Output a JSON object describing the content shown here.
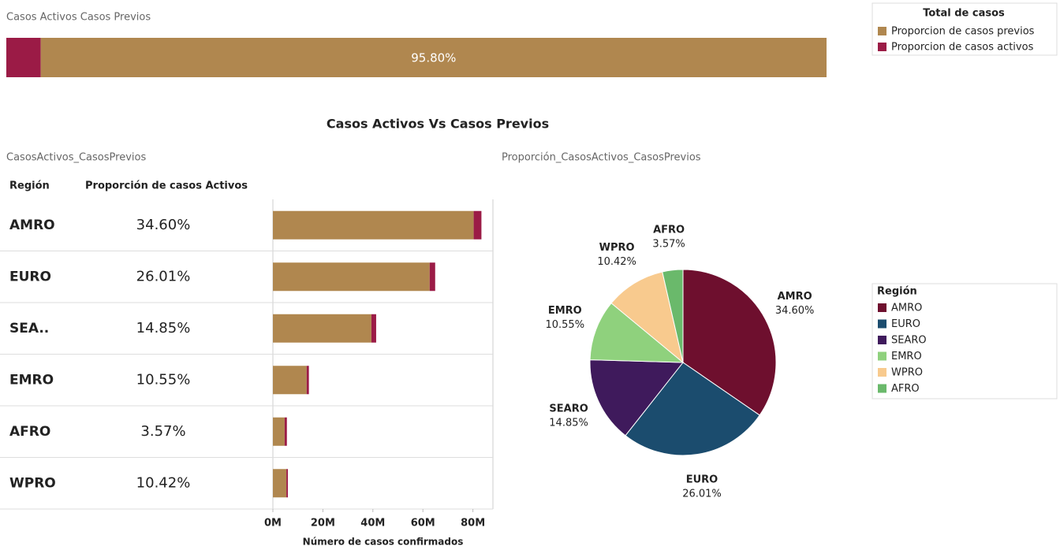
{
  "title": "Casos Activos Vs Casos Previos",
  "chart_data": [
    {
      "type": "bar",
      "orientation": "horizontal",
      "stacked": true,
      "title": "Casos Activos Casos Previos",
      "legend_title": "Total de casos",
      "xlim": [
        0,
        100
      ],
      "series": [
        {
          "name": "Proporcion de casos previos",
          "color": "#b0874f",
          "values": [
            95.8
          ],
          "value_labels": [
            "95.80%"
          ]
        },
        {
          "name": "Proporcion de casos activos",
          "color": "#9b1b46",
          "values": [
            4.2
          ]
        }
      ]
    },
    {
      "type": "bar",
      "orientation": "horizontal",
      "stacked": true,
      "title": "CasosActivos_CasosPrevios",
      "columns": [
        "Región",
        "Proporción de casos Activos"
      ],
      "categories": [
        "AMRO",
        "EURO",
        "SEA..",
        "EMRO",
        "AFRO",
        "WPRO"
      ],
      "share": {
        "values": [
          34.6,
          26.01,
          14.85,
          10.55,
          3.57,
          10.42
        ],
        "value_labels": [
          "34.60%",
          "26.01%",
          "14.85%",
          "10.55%",
          "3.57%",
          "10.42%"
        ]
      },
      "xlabel": "Número de casos confirmados",
      "xlim": [
        0,
        88
      ],
      "xticks": [
        {
          "value": 0,
          "label": "0M"
        },
        {
          "value": 20,
          "label": "20M"
        },
        {
          "value": 40,
          "label": "40M"
        },
        {
          "value": 60,
          "label": "60M"
        },
        {
          "value": 80,
          "label": "80M"
        }
      ],
      "series": [
        {
          "color": "#b0874f",
          "values": [
            80.3,
            62.7,
            39.4,
            13.5,
            4.7,
            5.4
          ]
        },
        {
          "color": "#9b1b46",
          "values": [
            3.1,
            2.2,
            1.9,
            0.9,
            0.9,
            0.6
          ]
        }
      ]
    },
    {
      "type": "pie",
      "title": "Proporción_CasosActivos_CasosPrevios",
      "legend_title": "Región",
      "categories": [
        "AMRO",
        "EURO",
        "SEARO",
        "EMRO",
        "WPRO",
        "AFRO"
      ],
      "values": [
        34.6,
        26.01,
        14.85,
        10.55,
        10.42,
        3.57
      ],
      "value_labels": [
        "34.60%",
        "26.01%",
        "14.85%",
        "10.55%",
        "10.42%",
        "3.57%"
      ],
      "colors": [
        "#6e0f2e",
        "#1b4c6e",
        "#3f1a5c",
        "#8fd17d",
        "#f8ca8e",
        "#6ab96b"
      ]
    }
  ]
}
